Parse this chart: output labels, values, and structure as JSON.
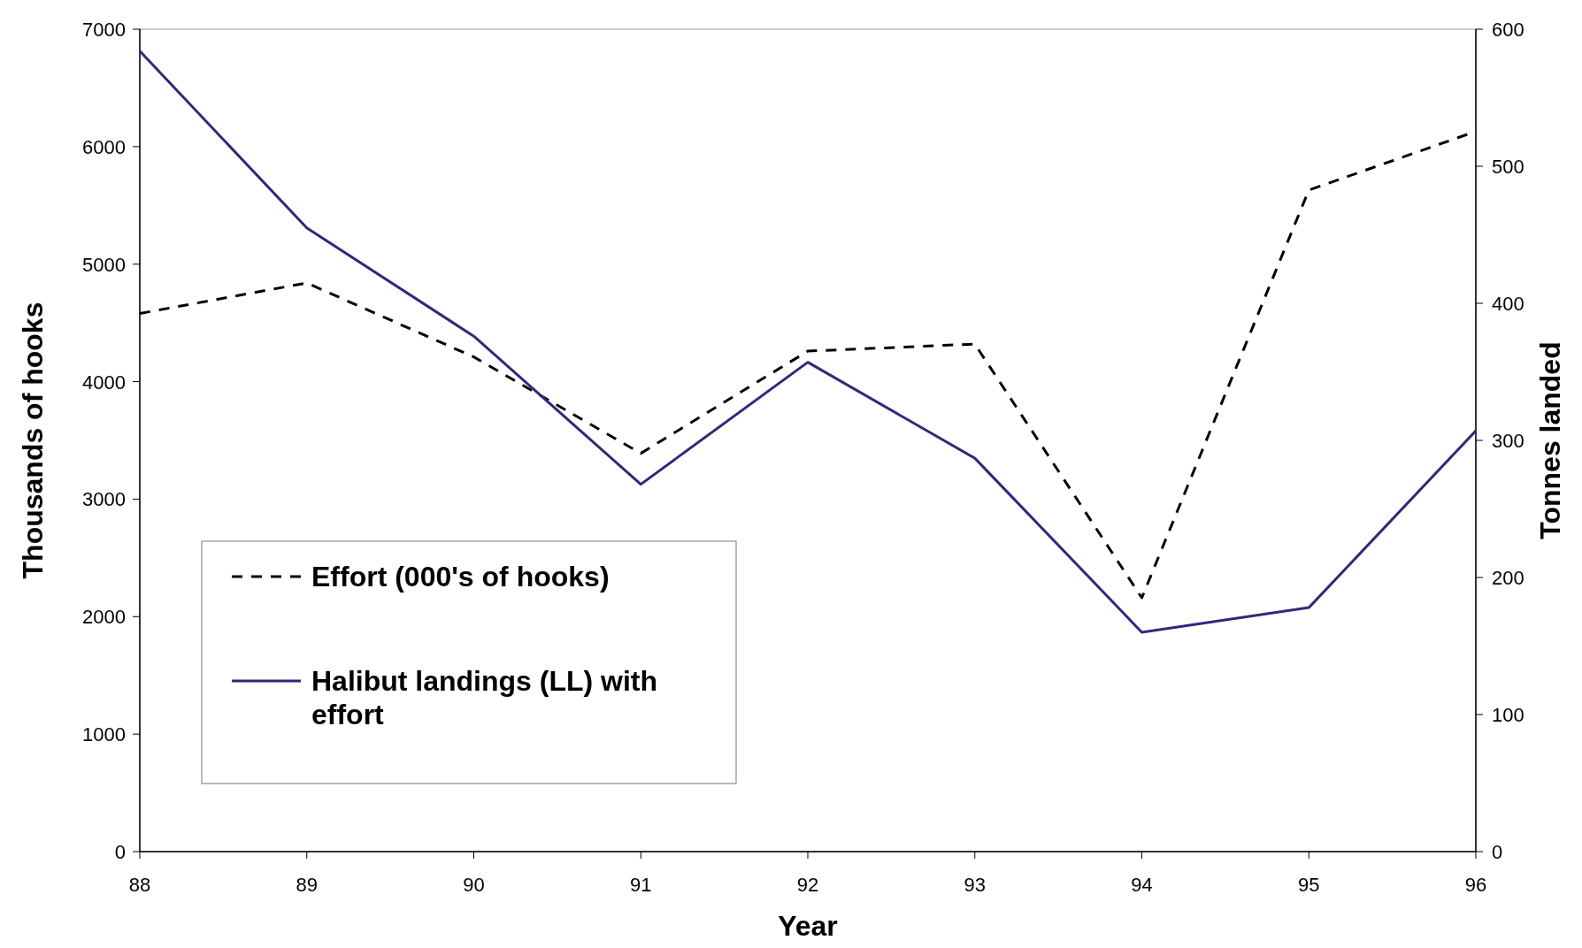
{
  "chart_data": {
    "type": "line",
    "xlabel": "Year",
    "ylabel": "Thousands of hooks",
    "y2label": "Tonnes landed",
    "x": [
      88,
      89,
      90,
      91,
      92,
      93,
      94,
      95,
      96
    ],
    "series": [
      {
        "name": "Effort (000's of hooks)",
        "color": "#000000",
        "line_style": "dashed",
        "values": [
          4580,
          4840,
          4210,
          3390,
          4260,
          4320,
          2160,
          5630,
          6130
        ]
      },
      {
        "name": "Halibut landings (LL) with effort",
        "color": "#2e2a7a",
        "line_style": "solid",
        "axis": "y2",
        "values": [
          584,
          455,
          376,
          268,
          357,
          287,
          160,
          178,
          307
        ]
      }
    ],
    "xlim": [
      88,
      96
    ],
    "xticks": [
      88,
      89,
      90,
      91,
      92,
      93,
      94,
      95,
      96
    ],
    "ylim": [
      0,
      7000
    ],
    "yticks": [
      0,
      1000,
      2000,
      3000,
      4000,
      5000,
      6000,
      7000
    ],
    "y2lim": [
      0,
      600
    ],
    "y2ticks": [
      0,
      100,
      200,
      300,
      400,
      500,
      600
    ],
    "grid": false,
    "legend": "bottom left",
    "marker": "none"
  }
}
